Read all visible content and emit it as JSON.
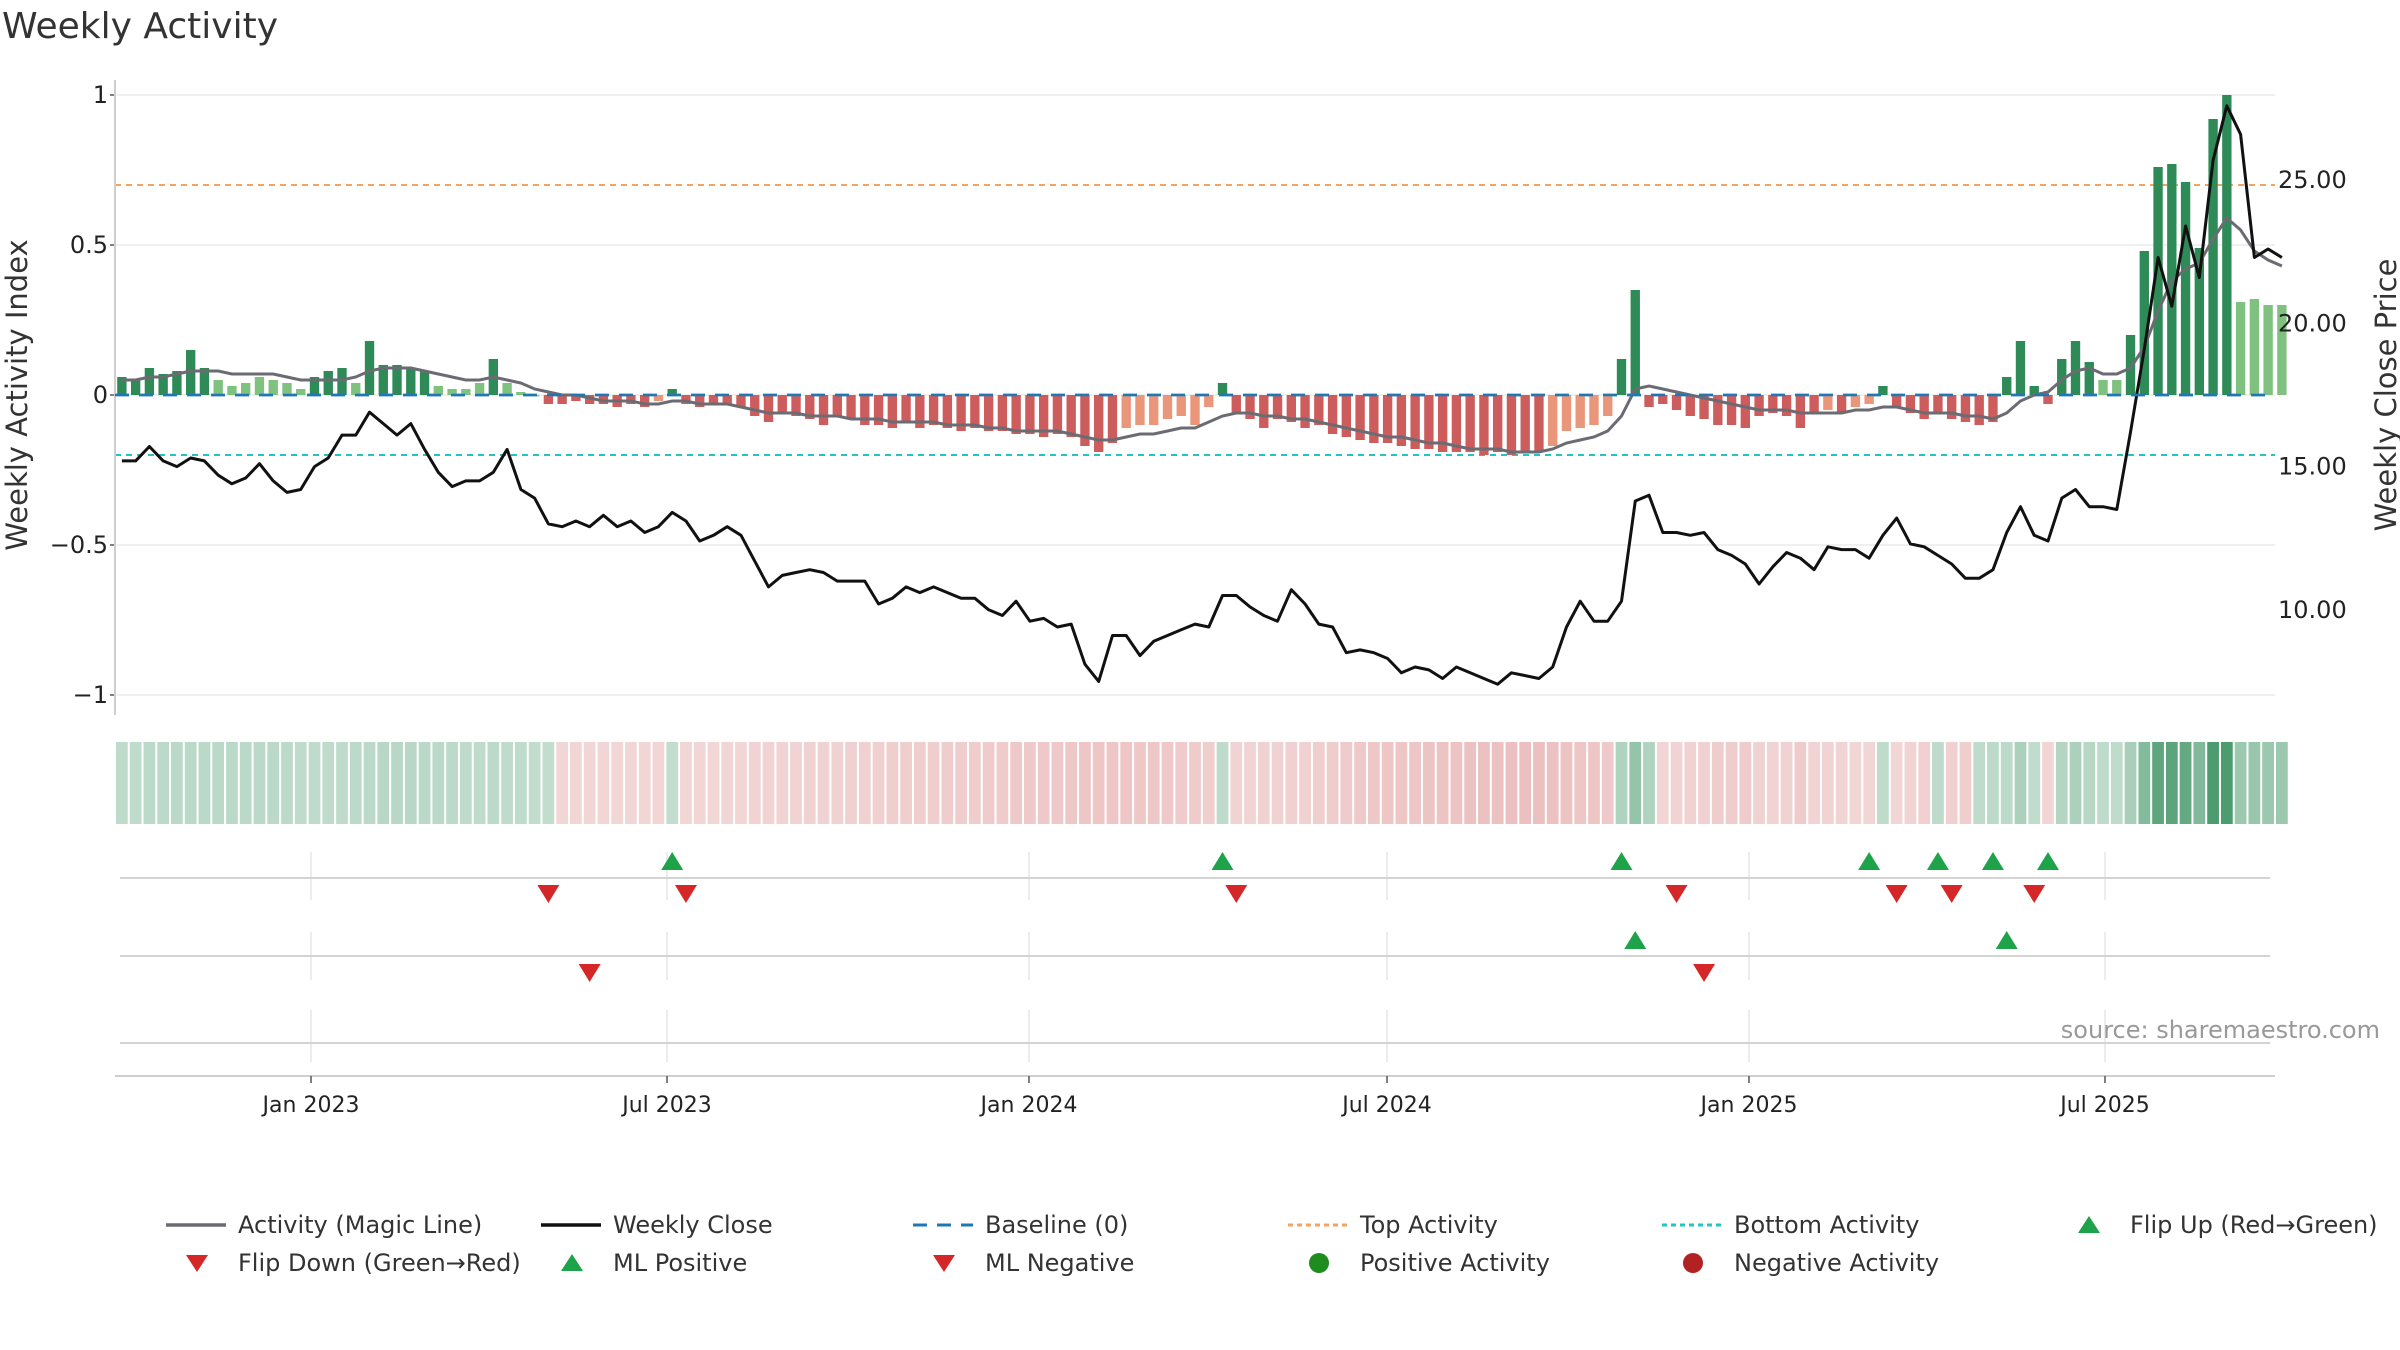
{
  "title": "Weekly Activity",
  "source": "source: sharemaestro.com",
  "colors": {
    "pos_dark": "#2e8b57",
    "pos_light": "#7fc17f",
    "neg_dark": "#cd5c5c",
    "neg_light": "#e9967a",
    "magic_line": "#6b6b73",
    "close_line": "#111111",
    "baseline": "#1f77b4",
    "top_line": "#f4a460",
    "bottom_line": "#20c5c5",
    "up_marker": "#1fa34a",
    "down_marker": "#d62728"
  },
  "chart_data": {
    "type": "bar",
    "title": "Weekly Activity",
    "ylabel": "Weekly Activity Index",
    "y2label": "Weekly Close Price",
    "ylim": [
      -1.05,
      1.05
    ],
    "y2lim": [
      6.5,
      28.5
    ],
    "y_ticks": [
      {
        "v": 1,
        "label": "1"
      },
      {
        "v": 0.5,
        "label": "0.5"
      },
      {
        "v": 0,
        "label": "0"
      },
      {
        "v": -0.5,
        "label": "−0.5"
      },
      {
        "v": -1,
        "label": "−1"
      }
    ],
    "y2_ticks": [
      {
        "v": 25,
        "label": "25.00"
      },
      {
        "v": 20,
        "label": "20.00"
      },
      {
        "v": 15,
        "label": "15.00"
      },
      {
        "v": 10,
        "label": "10.00"
      }
    ],
    "x_ticks": [
      "Jan 2023",
      "Jul 2023",
      "Jan 2024",
      "Jul 2024",
      "Jan 2025",
      "Jul 2025"
    ],
    "top_activity": 0.7,
    "bottom_activity": -0.2,
    "weeks": 157,
    "activity": [
      0.06,
      0.05,
      0.09,
      0.07,
      0.08,
      0.15,
      0.09,
      0.05,
      0.03,
      0.04,
      0.06,
      0.05,
      0.04,
      0.02,
      0.06,
      0.08,
      0.09,
      0.04,
      0.18,
      0.1,
      0.1,
      0.09,
      0.08,
      0.03,
      0.02,
      0.02,
      0.04,
      0.12,
      0.04,
      0.01,
      0.0,
      -0.03,
      -0.03,
      -0.02,
      -0.03,
      -0.03,
      -0.04,
      -0.03,
      -0.04,
      -0.02,
      0.02,
      -0.03,
      -0.04,
      -0.03,
      -0.03,
      -0.04,
      -0.07,
      -0.09,
      -0.06,
      -0.07,
      -0.08,
      -0.1,
      -0.07,
      -0.08,
      -0.1,
      -0.1,
      -0.11,
      -0.09,
      -0.11,
      -0.1,
      -0.11,
      -0.12,
      -0.11,
      -0.12,
      -0.12,
      -0.13,
      -0.13,
      -0.14,
      -0.13,
      -0.14,
      -0.17,
      -0.19,
      -0.16,
      -0.11,
      -0.1,
      -0.1,
      -0.08,
      -0.07,
      -0.1,
      -0.04,
      0.04,
      -0.06,
      -0.08,
      -0.11,
      -0.08,
      -0.09,
      -0.11,
      -0.1,
      -0.13,
      -0.14,
      -0.15,
      -0.16,
      -0.16,
      -0.17,
      -0.18,
      -0.18,
      -0.19,
      -0.19,
      -0.19,
      -0.2,
      -0.19,
      -0.2,
      -0.19,
      -0.19,
      -0.17,
      -0.12,
      -0.11,
      -0.1,
      -0.07,
      0.12,
      0.35,
      -0.04,
      -0.03,
      -0.05,
      -0.07,
      -0.08,
      -0.1,
      -0.1,
      -0.11,
      -0.07,
      -0.06,
      -0.07,
      -0.11,
      -0.06,
      -0.05,
      -0.06,
      -0.04,
      -0.03,
      0.03,
      -0.04,
      -0.06,
      -0.08,
      -0.06,
      -0.08,
      -0.09,
      -0.1,
      -0.09,
      0.06,
      0.18,
      0.03,
      -0.03,
      0.12,
      0.18,
      0.11,
      0.05,
      0.05,
      0.2,
      0.48,
      0.76,
      0.77,
      0.71,
      0.49,
      0.92,
      1.0,
      0.31,
      0.32,
      0.3,
      0.3
    ],
    "magic_line": [
      0.05,
      0.05,
      0.06,
      0.06,
      0.07,
      0.08,
      0.08,
      0.08,
      0.07,
      0.07,
      0.07,
      0.07,
      0.06,
      0.05,
      0.05,
      0.05,
      0.05,
      0.06,
      0.08,
      0.09,
      0.09,
      0.09,
      0.08,
      0.07,
      0.06,
      0.05,
      0.05,
      0.06,
      0.05,
      0.04,
      0.02,
      0.01,
      0.0,
      0.0,
      -0.01,
      -0.02,
      -0.02,
      -0.02,
      -0.03,
      -0.03,
      -0.02,
      -0.02,
      -0.03,
      -0.03,
      -0.03,
      -0.04,
      -0.05,
      -0.06,
      -0.06,
      -0.06,
      -0.07,
      -0.07,
      -0.07,
      -0.08,
      -0.08,
      -0.08,
      -0.09,
      -0.09,
      -0.09,
      -0.09,
      -0.1,
      -0.1,
      -0.1,
      -0.11,
      -0.11,
      -0.12,
      -0.12,
      -0.12,
      -0.12,
      -0.13,
      -0.14,
      -0.15,
      -0.15,
      -0.14,
      -0.13,
      -0.13,
      -0.12,
      -0.11,
      -0.11,
      -0.09,
      -0.07,
      -0.06,
      -0.06,
      -0.07,
      -0.07,
      -0.08,
      -0.08,
      -0.09,
      -0.1,
      -0.11,
      -0.12,
      -0.13,
      -0.14,
      -0.14,
      -0.15,
      -0.16,
      -0.16,
      -0.17,
      -0.18,
      -0.18,
      -0.18,
      -0.19,
      -0.19,
      -0.19,
      -0.18,
      -0.16,
      -0.15,
      -0.14,
      -0.12,
      -0.07,
      0.02,
      0.03,
      0.02,
      0.01,
      0.0,
      -0.01,
      -0.02,
      -0.03,
      -0.04,
      -0.05,
      -0.05,
      -0.05,
      -0.06,
      -0.06,
      -0.06,
      -0.06,
      -0.05,
      -0.05,
      -0.04,
      -0.04,
      -0.05,
      -0.06,
      -0.06,
      -0.06,
      -0.07,
      -0.07,
      -0.08,
      -0.06,
      -0.02,
      0.0,
      0.01,
      0.05,
      0.08,
      0.09,
      0.07,
      0.07,
      0.09,
      0.16,
      0.28,
      0.38,
      0.42,
      0.44,
      0.52,
      0.59,
      0.55,
      0.48,
      0.45,
      0.43
    ],
    "close": [
      15.2,
      15.2,
      15.7,
      15.2,
      15.0,
      15.3,
      15.2,
      14.7,
      14.4,
      14.6,
      15.1,
      14.5,
      14.1,
      14.2,
      15.0,
      15.3,
      16.1,
      16.1,
      16.9,
      16.5,
      16.1,
      16.5,
      15.6,
      14.8,
      14.3,
      14.5,
      14.5,
      14.8,
      15.6,
      14.2,
      13.9,
      13.0,
      12.9,
      13.1,
      12.9,
      13.3,
      12.9,
      13.1,
      12.7,
      12.9,
      13.4,
      13.1,
      12.4,
      12.6,
      12.9,
      12.6,
      11.7,
      10.8,
      11.2,
      11.3,
      11.4,
      11.3,
      11.0,
      11.0,
      11.0,
      10.2,
      10.4,
      10.8,
      10.6,
      10.8,
      10.6,
      10.4,
      10.4,
      10.0,
      9.8,
      10.3,
      9.6,
      9.7,
      9.4,
      9.5,
      8.1,
      7.5,
      9.1,
      9.1,
      8.4,
      8.9,
      9.1,
      9.3,
      9.5,
      9.4,
      10.5,
      10.5,
      10.1,
      9.8,
      9.6,
      10.7,
      10.2,
      9.5,
      9.4,
      8.5,
      8.6,
      8.5,
      8.3,
      7.8,
      8.0,
      7.9,
      7.6,
      8.0,
      7.8,
      7.6,
      7.4,
      7.8,
      7.7,
      7.6,
      8.0,
      9.4,
      10.3,
      9.6,
      9.6,
      10.3,
      13.8,
      14.0,
      12.7,
      12.7,
      12.6,
      12.7,
      12.1,
      11.9,
      11.6,
      10.9,
      11.5,
      12.0,
      11.8,
      11.4,
      12.2,
      12.1,
      12.1,
      11.8,
      12.6,
      13.2,
      12.3,
      12.2,
      11.9,
      11.6,
      11.1,
      11.1,
      11.4,
      12.7,
      13.6,
      12.6,
      12.4,
      13.9,
      14.2,
      13.6,
      13.6,
      13.5,
      16.2,
      19.1,
      22.3,
      20.6,
      23.4,
      21.6,
      25.7,
      27.6,
      26.6,
      22.3,
      22.6,
      22.3
    ],
    "band_activity": [
      0.05,
      0.05,
      0.06,
      0.06,
      0.07,
      0.08,
      0.08,
      0.08,
      0.07,
      0.07,
      0.07,
      0.07,
      0.06,
      0.05,
      0.05,
      0.05,
      0.05,
      0.06,
      0.08,
      0.09,
      0.09,
      0.09,
      0.08,
      0.07,
      0.06,
      0.05,
      0.05,
      0.06,
      0.05,
      0.04,
      0.02,
      0.01,
      -0.03,
      -0.03,
      -0.03,
      -0.03,
      -0.03,
      -0.03,
      -0.03,
      -0.03,
      0.02,
      -0.03,
      -0.04,
      -0.03,
      -0.03,
      -0.04,
      -0.05,
      -0.06,
      -0.06,
      -0.06,
      -0.07,
      -0.07,
      -0.07,
      -0.08,
      -0.08,
      -0.08,
      -0.09,
      -0.09,
      -0.09,
      -0.09,
      -0.1,
      -0.1,
      -0.1,
      -0.11,
      -0.11,
      -0.12,
      -0.12,
      -0.12,
      -0.12,
      -0.13,
      -0.14,
      -0.15,
      -0.15,
      -0.14,
      -0.13,
      -0.13,
      -0.12,
      -0.11,
      -0.11,
      -0.09,
      0.04,
      -0.06,
      -0.06,
      -0.07,
      -0.07,
      -0.08,
      -0.08,
      -0.09,
      -0.1,
      -0.11,
      -0.12,
      -0.13,
      -0.14,
      -0.14,
      -0.15,
      -0.16,
      -0.16,
      -0.17,
      -0.18,
      -0.18,
      -0.18,
      -0.19,
      -0.19,
      -0.19,
      -0.18,
      -0.16,
      -0.15,
      -0.14,
      -0.12,
      0.15,
      0.35,
      0.15,
      -0.03,
      -0.05,
      -0.07,
      -0.08,
      -0.1,
      -0.1,
      -0.11,
      -0.07,
      -0.06,
      -0.07,
      -0.11,
      -0.06,
      -0.05,
      -0.06,
      -0.04,
      -0.03,
      0.05,
      -0.04,
      -0.06,
      -0.08,
      0.05,
      -0.08,
      -0.09,
      0.05,
      0.06,
      0.06,
      0.18,
      0.03,
      -0.03,
      0.12,
      0.18,
      0.11,
      0.05,
      0.05,
      0.2,
      0.48,
      0.76,
      0.77,
      0.71,
      0.49,
      0.92,
      1.0,
      0.31,
      0.32,
      0.3,
      0.3
    ],
    "flip_up_weeks": [
      40,
      80,
      109,
      127,
      132,
      136,
      140
    ],
    "flip_down_weeks": [
      31,
      41,
      81,
      113,
      129,
      133,
      139
    ],
    "ml_positive_weeks": [
      110,
      137
    ],
    "ml_negative_weeks": [
      34,
      115
    ],
    "legend": [
      {
        "label": "Activity (Magic Line)",
        "type": "line",
        "color": "#6b6b73",
        "dash": ""
      },
      {
        "label": "Weekly Close",
        "type": "line",
        "color": "#111111",
        "dash": ""
      },
      {
        "label": "Baseline (0)",
        "type": "line",
        "color": "#1f77b4",
        "dash": "14,10"
      },
      {
        "label": "Top Activity",
        "type": "line",
        "color": "#f4a460",
        "dash": "5,4"
      },
      {
        "label": "Bottom Activity",
        "type": "line",
        "color": "#20c5c5",
        "dash": "5,4"
      },
      {
        "label": "Flip Up (Red→Green)",
        "type": "tri-up",
        "color": "#1fa34a"
      },
      {
        "label": "Flip Down (Green→Red)",
        "type": "tri-down",
        "color": "#d62728"
      },
      {
        "label": "ML Positive",
        "type": "tri-up",
        "color": "#1fa34a"
      },
      {
        "label": "ML Negative",
        "type": "tri-down",
        "color": "#d62728"
      },
      {
        "label": "Positive Activity",
        "type": "dot",
        "color": "#1e8c1e"
      },
      {
        "label": "Negative Activity",
        "type": "dot",
        "color": "#b22222"
      }
    ]
  }
}
